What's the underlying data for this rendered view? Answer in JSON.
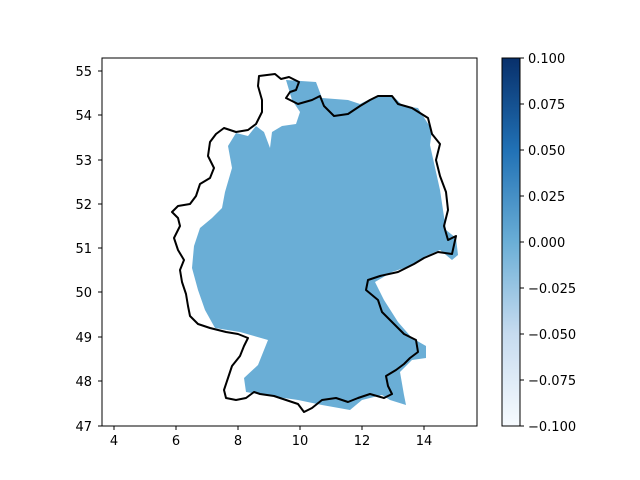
{
  "map": {
    "x_ticks": [
      "4",
      "6",
      "8",
      "10",
      "12",
      "14"
    ],
    "y_ticks": [
      "47",
      "48",
      "49",
      "50",
      "51",
      "52",
      "53",
      "54",
      "55"
    ],
    "fill_color": "#6aaed6",
    "border_color": "#000000"
  },
  "colorbar": {
    "ticks": [
      "0.100",
      "0.075",
      "0.050",
      "0.025",
      "0.000",
      "−0.025",
      "−0.050",
      "−0.075",
      "−0.100"
    ],
    "color_top": "#08306b",
    "color_mid": "#6aaed6",
    "color_bottom": "#f7fbff"
  }
}
